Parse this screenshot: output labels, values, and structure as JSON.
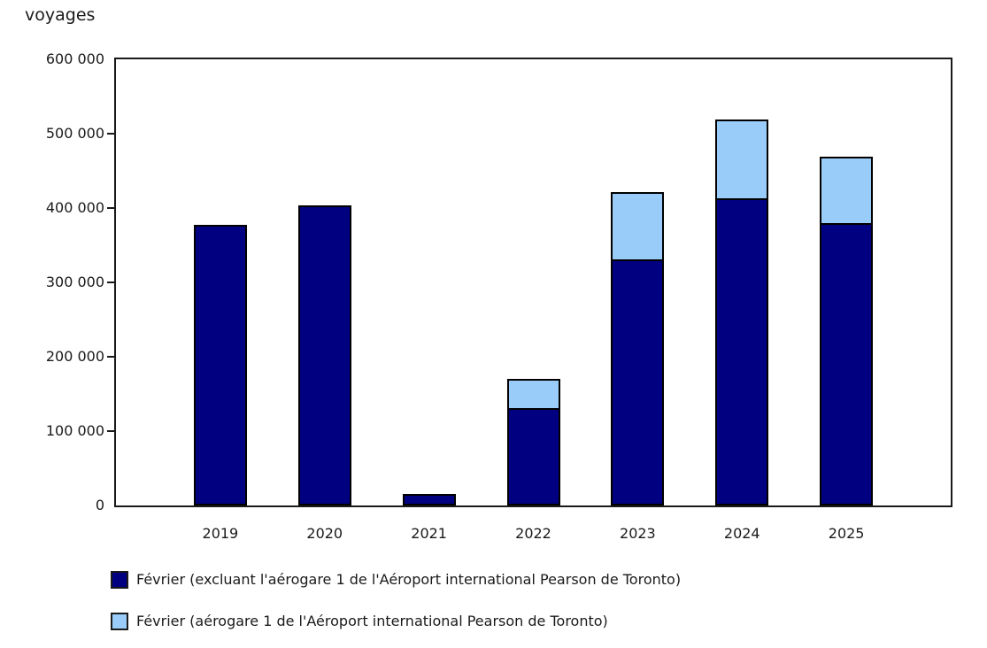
{
  "chart_data": {
    "type": "bar",
    "stacked": true,
    "title": "",
    "ylabel": "voyages",
    "xlabel": "",
    "categories": [
      "2019",
      "2020",
      "2021",
      "2022",
      "2023",
      "2024",
      "2025"
    ],
    "series": [
      {
        "name": "Février (excluant l'aérogare 1 de l'Aéroport international Pearson de Toronto)",
        "color": "#000080",
        "values": [
          377000,
          403000,
          15000,
          131000,
          331000,
          413000,
          380000
        ]
      },
      {
        "name": "Février (aérogare 1 de l'Aéroport international Pearson de Toronto)",
        "color": "#99CCF8",
        "values": [
          0,
          0,
          0,
          39000,
          91000,
          106000,
          89000
        ]
      }
    ],
    "ylim": [
      0,
      600000
    ],
    "ytick_step": 100000,
    "ytick_labels": [
      "0",
      "100 000",
      "200 000",
      "300 000",
      "400 000",
      "500 000",
      "600 000"
    ],
    "grid": false,
    "legend_position": "bottom"
  },
  "legend": {
    "items": [
      {
        "label": "Février (excluant l'aérogare 1 de l'Aéroport international Pearson de Toronto)"
      },
      {
        "label": "Février (aérogare 1 de l'Aéroport international Pearson de Toronto)"
      }
    ]
  },
  "colors": {
    "dark_series": "#000080",
    "light_series": "#99CCF8",
    "axis": "#1a1a1a",
    "background": "#ffffff"
  }
}
